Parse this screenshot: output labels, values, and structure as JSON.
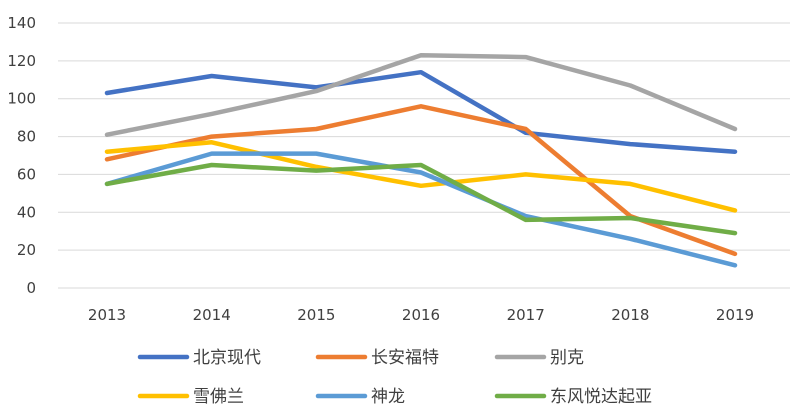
{
  "chart_data": {
    "type": "line",
    "title": "",
    "xlabel": "",
    "ylabel": "",
    "x": [
      "2013",
      "2014",
      "2015",
      "2016",
      "2017",
      "2018",
      "2019"
    ],
    "ylim": [
      0,
      140
    ],
    "yticks": [
      0,
      20,
      40,
      60,
      80,
      100,
      120,
      140
    ],
    "grid": "horizontal",
    "legend_position": "bottom",
    "series": [
      {
        "name": "北京现代",
        "color": "#4472C4",
        "values": [
          103,
          112,
          106,
          114,
          82,
          76,
          72
        ]
      },
      {
        "name": "长安福特",
        "color": "#ED7D31",
        "values": [
          68,
          80,
          84,
          96,
          84,
          38,
          18
        ]
      },
      {
        "name": "别克",
        "color": "#A5A5A5",
        "values": [
          81,
          92,
          104,
          123,
          122,
          107,
          84
        ]
      },
      {
        "name": "雪佛兰",
        "color": "#FFC000",
        "values": [
          72,
          77,
          64,
          54,
          60,
          55,
          41
        ]
      },
      {
        "name": "神龙",
        "color": "#5B9BD5",
        "values": [
          55,
          71,
          71,
          61,
          38,
          26,
          12
        ]
      },
      {
        "name": "东风悦达起亚",
        "color": "#70AD47",
        "values": [
          55,
          65,
          62,
          65,
          36,
          37,
          29
        ]
      }
    ]
  }
}
